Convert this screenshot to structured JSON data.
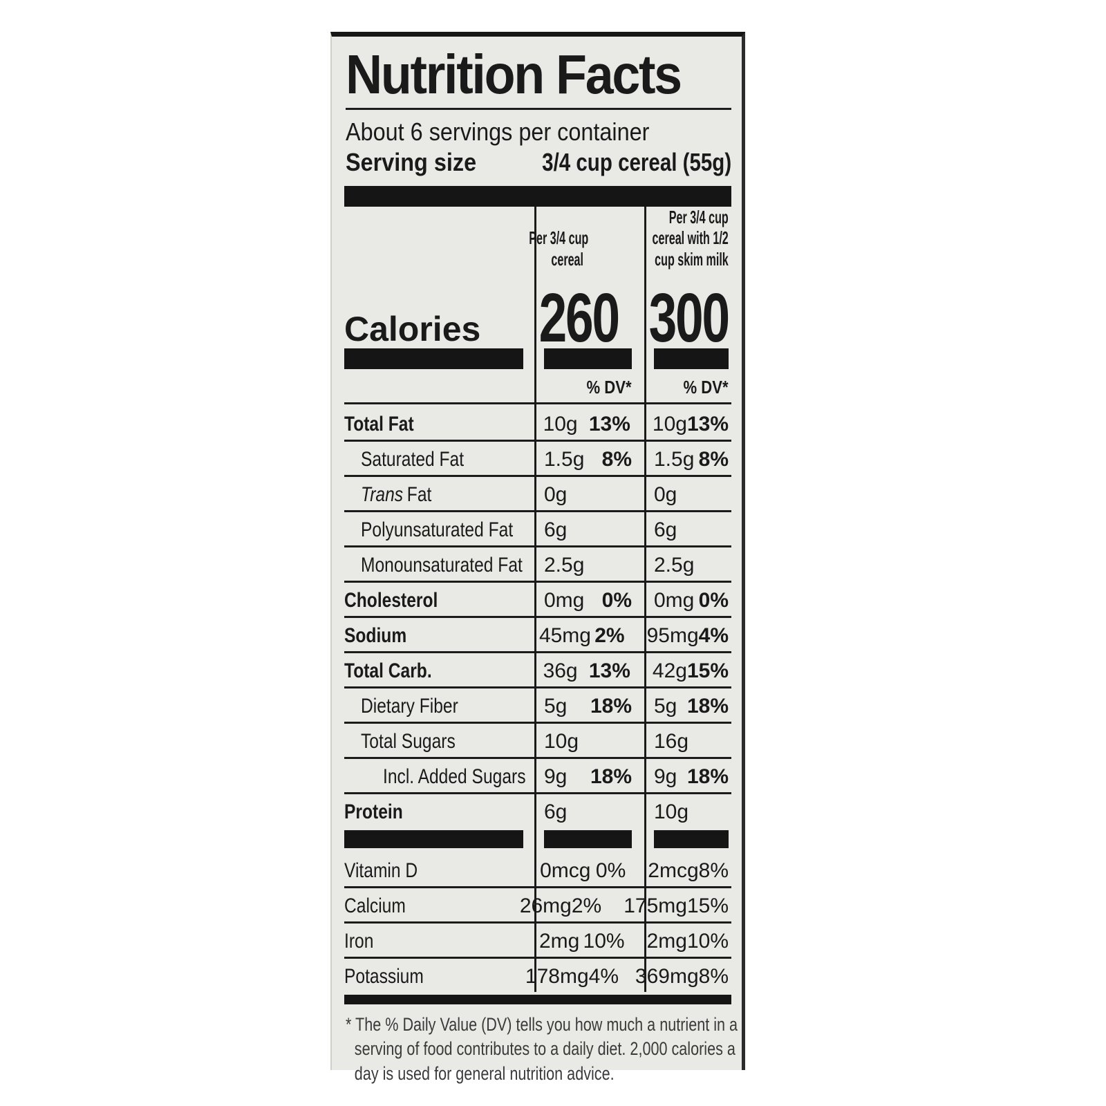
{
  "label": {
    "title": "Nutrition Facts",
    "servings_line": "About 6 servings per container",
    "serving_size": {
      "label": "Serving size",
      "value": "3/4 cup cereal (55g)"
    },
    "col_headers": [
      [
        "Per 3/4 cup",
        "cereal"
      ],
      [
        "Per 3/4 cup",
        "cereal with 1/2",
        "cup skim milk"
      ]
    ],
    "calories": {
      "label": "Calories",
      "col1": "260",
      "col2": "300"
    },
    "dv_header": "% DV*",
    "nutrients": [
      {
        "name": "Total Fat",
        "bold": true,
        "indent": 0,
        "c1": "10g",
        "d1": "13%",
        "c2": "10g",
        "d2": "13%"
      },
      {
        "name": "Saturated Fat",
        "indent": 1,
        "c1": "1.5g",
        "d1": "8%",
        "c2": "1.5g",
        "d2": "8%"
      },
      {
        "name": "Fat",
        "italic_prefix": "Trans",
        "indent": 1,
        "c1": "0g",
        "c2": "0g"
      },
      {
        "name": "Polyunsaturated Fat",
        "indent": 1,
        "c1": "6g",
        "c2": "6g"
      },
      {
        "name": "Monounsaturated Fat",
        "indent": 1,
        "c1": "2.5g",
        "c2": "2.5g"
      },
      {
        "name": "Cholesterol",
        "bold": true,
        "indent": 0,
        "c1": "0mg",
        "d1": "0%",
        "c2": "0mg",
        "d2": "0%"
      },
      {
        "name": "Sodium",
        "bold": true,
        "indent": 0,
        "c1": "45mg",
        "d1": "2%",
        "c2": "95mg",
        "d2": "4%"
      },
      {
        "name": "Total Carb.",
        "bold": true,
        "indent": 0,
        "c1": "36g",
        "d1": "13%",
        "c2": "42g",
        "d2": "15%"
      },
      {
        "name": "Dietary Fiber",
        "indent": 1,
        "c1": "5g",
        "d1": "18%",
        "c2": "5g",
        "d2": "18%"
      },
      {
        "name": "Total Sugars",
        "indent": 1,
        "c1": "10g",
        "c2": "16g"
      },
      {
        "name": "Incl. Added Sugars",
        "indent": 2,
        "c1": "9g",
        "d1": "18%",
        "c2": "9g",
        "d2": "18%"
      },
      {
        "name": "Protein",
        "bold": true,
        "indent": 0,
        "c1": "6g",
        "c2": "10g"
      }
    ],
    "micronutrients": [
      {
        "name": "Vitamin D",
        "c1": "0mcg",
        "d1": "0%",
        "c2": "2mcg",
        "d2": "8%"
      },
      {
        "name": "Calcium",
        "c1": "26mg",
        "d1": "2%",
        "c2": "175mg",
        "d2": "15%"
      },
      {
        "name": "Iron",
        "c1": "2mg",
        "d1": "10%",
        "c2": "2mg",
        "d2": "10%"
      },
      {
        "name": "Potassium",
        "c1": "178mg",
        "d1": "4%",
        "c2": "369mg",
        "d2": "8%"
      }
    ],
    "footnote_marker": "*",
    "footnote": "The % Daily Value (DV) tells you how much a nutrient in a serving of food contributes to a daily diet. 2,000 calories a day is used for general nutrition advice.",
    "colors": {
      "ink": "#1a1a1a",
      "panel_bg": "#e9e9e5",
      "page_bg": "#ffffff"
    }
  }
}
